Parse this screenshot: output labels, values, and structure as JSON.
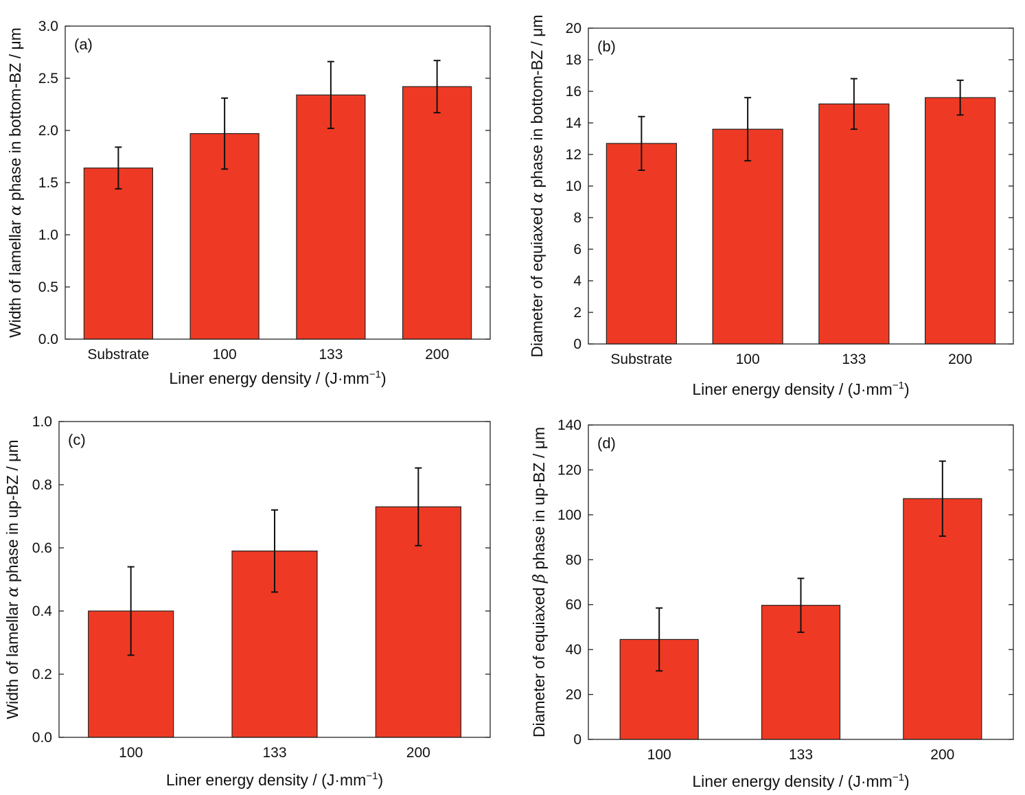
{
  "bar_color": "#ee3a24",
  "chart_data": [
    {
      "type": "bar",
      "panel_label": "(a)",
      "categories": [
        "Substrate",
        "100",
        "133",
        "200"
      ],
      "values": [
        1.64,
        1.97,
        2.34,
        2.42
      ],
      "errors": [
        0.2,
        0.34,
        0.32,
        0.25
      ],
      "ylim": [
        0,
        3.0
      ],
      "yticks": [
        0,
        0.5,
        1.0,
        1.5,
        2.0,
        2.5,
        3.0
      ],
      "ytick_labels": [
        "0.0",
        "0.5",
        "1.0",
        "1.5",
        "2.0",
        "2.5",
        "3.0"
      ],
      "xlabel": "Liner energy density / (J·mm",
      "xlabel_sup": "−1",
      "xlabel_close": ")",
      "ylabel": "Width of lamellar ",
      "ylabel_symbol": "α",
      "ylabel_rest": " phase in bottom-BZ / μm",
      "grid": false
    },
    {
      "type": "bar",
      "panel_label": "(b)",
      "categories": [
        "Substrate",
        "100",
        "133",
        "200"
      ],
      "values": [
        12.7,
        13.6,
        15.2,
        15.6
      ],
      "errors": [
        1.7,
        2.0,
        1.6,
        1.1
      ],
      "ylim": [
        0,
        20
      ],
      "yticks": [
        0,
        2,
        4,
        6,
        8,
        10,
        12,
        14,
        16,
        18,
        20
      ],
      "ytick_labels": [
        "0",
        "2",
        "4",
        "6",
        "8",
        "10",
        "12",
        "14",
        "16",
        "18",
        "20"
      ],
      "xlabel": "Liner energy density / (J·mm",
      "xlabel_sup": "−1",
      "xlabel_close": ")",
      "ylabel": "Diameter of equiaxed ",
      "ylabel_symbol": "α",
      "ylabel_rest": " phase in bottom-BZ / μm",
      "grid": false
    },
    {
      "type": "bar",
      "panel_label": "(c)",
      "categories": [
        "100",
        "133",
        "200"
      ],
      "values": [
        0.4,
        0.59,
        0.73
      ],
      "errors": [
        0.14,
        0.13,
        0.123
      ],
      "ylim": [
        0,
        1.0
      ],
      "yticks": [
        0,
        0.2,
        0.4,
        0.6,
        0.8,
        1.0
      ],
      "ytick_labels": [
        "0.0",
        "0.2",
        "0.4",
        "0.6",
        "0.8",
        "1.0"
      ],
      "xlabel": "Liner energy density / (J·mm",
      "xlabel_sup": "−1",
      "xlabel_close": ")",
      "ylabel": "Width of lamellar ",
      "ylabel_symbol": "α",
      "ylabel_rest": " phase in up-BZ / μm",
      "grid": false
    },
    {
      "type": "bar",
      "panel_label": "(d)",
      "categories": [
        "100",
        "133",
        "200"
      ],
      "values": [
        44.5,
        59.7,
        107.2
      ],
      "errors": [
        14,
        12,
        16.7
      ],
      "ylim": [
        0,
        140
      ],
      "yticks": [
        0,
        20,
        40,
        60,
        80,
        100,
        120,
        140
      ],
      "ytick_labels": [
        "0",
        "20",
        "40",
        "60",
        "80",
        "100",
        "120",
        "140"
      ],
      "xlabel": "Liner energy density / (J·mm",
      "xlabel_sup": "−1",
      "xlabel_close": ")",
      "ylabel": "Diameter of equiaxed ",
      "ylabel_symbol": "β",
      "ylabel_rest": " phase in up-BZ / μm",
      "grid": false
    }
  ]
}
